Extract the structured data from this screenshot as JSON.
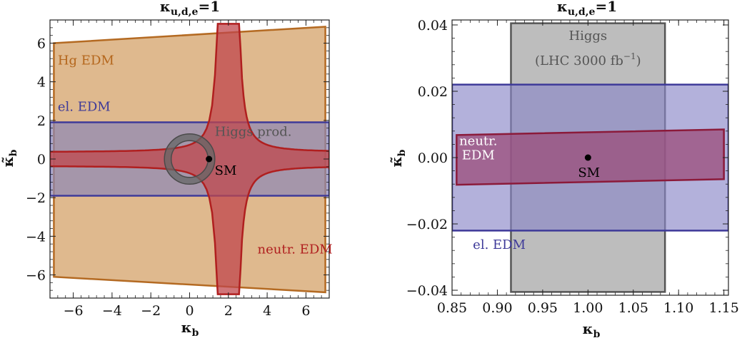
{
  "chart_data": [
    {
      "type": "area",
      "title": "κ_{u,d,e}=1",
      "title_main": "κ",
      "title_sub": "u,d,e",
      "title_rest": "=1",
      "xlabel_main": "κ",
      "xlabel_sub": "b",
      "ylabel_main": "κ̃",
      "ylabel_sub": "b",
      "xlim": [
        -7.2,
        7.2
      ],
      "ylim": [
        -7.2,
        7.2
      ],
      "xticks": [
        -6,
        -4,
        -2,
        0,
        2,
        4,
        6
      ],
      "yticks": [
        -6,
        -4,
        -2,
        0,
        2,
        4,
        6
      ],
      "xtick_labels": [
        "−6",
        "−4",
        "−2",
        "0",
        "2",
        "4",
        "6"
      ],
      "ytick_labels": [
        "−6",
        "−4",
        "−2",
        "0",
        "2",
        "4",
        "6"
      ],
      "regions": [
        {
          "name": "Hg EDM",
          "fill": "#dfb98e",
          "stroke": "#b46a22",
          "polygon": [
            [
              -7.0,
              6.0
            ],
            [
              7.0,
              6.85
            ],
            [
              7.0,
              -6.9
            ],
            [
              -7.0,
              -6.1
            ]
          ]
        },
        {
          "name": "el. EDM",
          "fill": "#8b87b7",
          "stroke": "#3e3a99",
          "polygon": [
            [
              -7.2,
              1.9
            ],
            [
              7.2,
              1.9
            ],
            [
              7.2,
              -1.9
            ],
            [
              -7.2,
              -1.9
            ]
          ]
        },
        {
          "name": "neutr. EDM",
          "fill": "#c0474c",
          "stroke": "#b01f1f",
          "shape": "hyperbolic-cross",
          "x_center": 2.0,
          "y_center": 0.0,
          "y_half_width": 0.35,
          "x_half_width": 0.55,
          "y_extent": 7.0
        }
      ],
      "higgs_ring": {
        "name": "Higgs prod.",
        "center": [
          0,
          0
        ],
        "inner_radius": 0.95,
        "outer_radius": 1.3,
        "fill": "#666666",
        "stroke": "#4a4a4a"
      },
      "sm_point": {
        "label": "SM",
        "x": 1,
        "y": 0
      },
      "annotations": [
        {
          "text": "Hg EDM",
          "color": "#b4661c",
          "x": -6.8,
          "y": 4.9
        },
        {
          "text": "el. EDM",
          "color": "#3e3a99",
          "x": -6.8,
          "y": 2.5
        },
        {
          "text": "Higgs prod.",
          "color": "#555555",
          "x": 1.3,
          "y": 1.2
        },
        {
          "text": "neutr. EDM",
          "color": "#b01f1f",
          "x": 3.5,
          "y": -4.9
        }
      ]
    },
    {
      "type": "area",
      "title": "κ_{u,d,e}=1",
      "title_main": "κ",
      "title_sub": "u,d,e",
      "title_rest": "=1",
      "xlabel_main": "κ",
      "xlabel_sub": "b",
      "ylabel_main": "κ̃",
      "ylabel_sub": "b",
      "xlim": [
        0.85,
        1.155
      ],
      "ylim": [
        -0.0415,
        0.0415
      ],
      "xticks": [
        0.85,
        0.9,
        0.95,
        1.0,
        1.05,
        1.1,
        1.15
      ],
      "yticks": [
        -0.04,
        -0.02,
        0.0,
        0.02,
        0.04
      ],
      "xtick_labels": [
        "0.85",
        "0.90",
        "0.95",
        "1.00",
        "1.05",
        "1.10",
        "1.15"
      ],
      "ytick_labels": [
        "−0.04",
        "−0.02",
        "0.00",
        "0.02",
        "0.04"
      ],
      "regions": [
        {
          "name": "Higgs (LHC 3000 fb−1)",
          "fill": "#bdbdbd",
          "stroke": "#555555",
          "polygon": [
            [
              0.915,
              0.0405
            ],
            [
              1.085,
              0.0405
            ],
            [
              1.085,
              -0.0405
            ],
            [
              0.915,
              -0.0405
            ]
          ]
        },
        {
          "name": "el. EDM",
          "fill": "#8b87c7",
          "stroke": "#3e3a99",
          "opacity": 0.65,
          "polygon": [
            [
              0.85,
              0.022
            ],
            [
              1.155,
              0.022
            ],
            [
              1.155,
              -0.022
            ],
            [
              0.85,
              -0.022
            ]
          ]
        },
        {
          "name": "neutr. EDM",
          "fill": "#9b4c7a",
          "stroke": "#8b1a3a",
          "opacity": 0.75,
          "polygon": [
            [
              0.855,
              0.0068
            ],
            [
              1.15,
              0.0085
            ],
            [
              1.15,
              -0.0065
            ],
            [
              0.855,
              -0.0082
            ]
          ]
        }
      ],
      "sm_point": {
        "label": "SM",
        "x": 1.0,
        "y": 0.0
      },
      "annotations": [
        {
          "text": "Higgs",
          "color": "#555555",
          "x": 1.0,
          "y": 0.0355
        },
        {
          "text": "(LHC 3000 fb",
          "sup": "−1",
          "close": ")",
          "color": "#555555",
          "x": 1.0,
          "y": 0.028
        },
        {
          "text": "neutr.",
          "color": "#ffffff",
          "x": 0.879,
          "y": 0.0038
        },
        {
          "text": "EDM",
          "color": "#ffffff",
          "x": 0.879,
          "y": -0.0005
        },
        {
          "text": "el. EDM",
          "color": "#3e3a99",
          "x": 0.873,
          "y": -0.0275
        }
      ]
    }
  ]
}
